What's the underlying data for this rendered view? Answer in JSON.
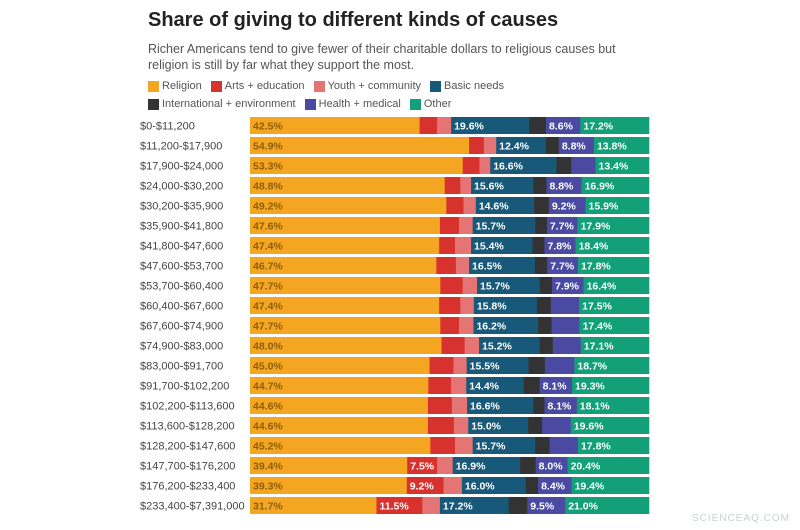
{
  "chart_data": {
    "type": "bar",
    "orientation": "horizontal",
    "stacked": true,
    "title": "Share of giving to different kinds of causes",
    "subtitle": "Richer Americans tend to give fewer of their charitable dollars to religious causes but religion is still by far what they support the most.",
    "legend_position": "top",
    "grid": false,
    "xlim": [
      0,
      100
    ],
    "series": [
      {
        "name": "Religion",
        "color": "#f4a623"
      },
      {
        "name": "Arts + education",
        "color": "#d8322e"
      },
      {
        "name": "Youth + community",
        "color": "#e57575"
      },
      {
        "name": "Basic needs",
        "color": "#18597a"
      },
      {
        "name": "International + environment",
        "color": "#333333"
      },
      {
        "name": "Health + medical",
        "color": "#4a4aa3"
      },
      {
        "name": "Other",
        "color": "#13a078"
      }
    ],
    "rows": [
      {
        "category": "$0-$11,200",
        "values": [
          42.5,
          4.4,
          3.5,
          19.6,
          4.2,
          8.6,
          17.2
        ],
        "labels": [
          "42.5%",
          "",
          "",
          "19.6%",
          "",
          "8.6%",
          "17.2%"
        ]
      },
      {
        "category": "$11,200-$17,900",
        "values": [
          54.9,
          3.7,
          3.1,
          12.4,
          3.3,
          8.8,
          13.8
        ],
        "labels": [
          "54.9%",
          "",
          "",
          "12.4%",
          "",
          "8.8%",
          "13.8%"
        ]
      },
      {
        "category": "$17,900-$24,000",
        "values": [
          53.3,
          4.2,
          2.7,
          16.6,
          3.7,
          6.1,
          13.4
        ],
        "labels": [
          "53.3%",
          "",
          "",
          "16.6%",
          "",
          "",
          "13.4%"
        ]
      },
      {
        "category": "$24,000-$30,200",
        "values": [
          48.8,
          3.9,
          2.7,
          15.6,
          3.3,
          8.8,
          16.9
        ],
        "labels": [
          "48.8%",
          "",
          "",
          "15.6%",
          "",
          "8.8%",
          "16.9%"
        ]
      },
      {
        "category": "$30,200-$35,900",
        "values": [
          49.2,
          4.3,
          3.1,
          14.6,
          3.7,
          9.2,
          15.9
        ],
        "labels": [
          "49.2%",
          "",
          "",
          "14.6%",
          "",
          "9.2%",
          "15.9%"
        ]
      },
      {
        "category": "$35,900-$41,800",
        "values": [
          47.6,
          4.8,
          3.4,
          15.7,
          2.9,
          7.7,
          17.9
        ],
        "labels": [
          "47.6%",
          "",
          "",
          "15.7%",
          "",
          "7.7%",
          "17.9%"
        ]
      },
      {
        "category": "$41,800-$47,600",
        "values": [
          47.4,
          4.0,
          4.0,
          15.4,
          3.0,
          7.8,
          18.4
        ],
        "labels": [
          "47.4%",
          "",
          "",
          "15.4%",
          "",
          "7.8%",
          "18.4%"
        ]
      },
      {
        "category": "$47,600-$53,700",
        "values": [
          46.7,
          4.9,
          3.3,
          16.5,
          3.1,
          7.7,
          17.8
        ],
        "labels": [
          "46.7%",
          "",
          "",
          "16.5%",
          "",
          "7.7%",
          "17.8%"
        ]
      },
      {
        "category": "$53,700-$60,400",
        "values": [
          47.7,
          5.6,
          3.6,
          15.7,
          3.1,
          7.9,
          16.4
        ],
        "labels": [
          "47.7%",
          "",
          "",
          "15.7%",
          "",
          "7.9%",
          "16.4%"
        ]
      },
      {
        "category": "$60,400-$67,600",
        "values": [
          47.4,
          5.3,
          3.4,
          15.8,
          3.5,
          7.1,
          17.5
        ],
        "labels": [
          "47.4%",
          "",
          "",
          "15.8%",
          "",
          "",
          "17.5%"
        ]
      },
      {
        "category": "$67,600-$74,900",
        "values": [
          47.7,
          4.7,
          3.6,
          16.2,
          3.4,
          7.0,
          17.4
        ],
        "labels": [
          "47.7%",
          "",
          "",
          "16.2%",
          "",
          "",
          "17.4%"
        ]
      },
      {
        "category": "$74,900-$83,000",
        "values": [
          48.0,
          5.8,
          3.6,
          15.2,
          3.3,
          7.0,
          17.1
        ],
        "labels": [
          "48.0%",
          "",
          "",
          "15.2%",
          "",
          "",
          "17.1%"
        ]
      },
      {
        "category": "$83,000-$91,700",
        "values": [
          45.0,
          6.0,
          3.3,
          15.5,
          4.1,
          7.4,
          18.7
        ],
        "labels": [
          "45.0%",
          "",
          "",
          "15.5%",
          "",
          "",
          "18.7%"
        ]
      },
      {
        "category": "$91,700-$102,200",
        "values": [
          44.7,
          5.7,
          3.8,
          14.4,
          4.0,
          8.1,
          19.3
        ],
        "labels": [
          "44.7%",
          "",
          "",
          "14.4%",
          "",
          "8.1%",
          "19.3%"
        ]
      },
      {
        "category": "$102,200-$113,600",
        "values": [
          44.6,
          6.0,
          3.8,
          16.6,
          2.8,
          8.1,
          18.1
        ],
        "labels": [
          "44.6%",
          "",
          "",
          "16.6%",
          "",
          "8.1%",
          "18.1%"
        ]
      },
      {
        "category": "$113,600-$128,200",
        "values": [
          44.6,
          6.5,
          3.6,
          15.0,
          3.5,
          7.2,
          19.6
        ],
        "labels": [
          "44.6%",
          "",
          "",
          "15.0%",
          "",
          "",
          "19.6%"
        ]
      },
      {
        "category": "$128,200-$147,600",
        "values": [
          45.2,
          6.2,
          4.4,
          15.7,
          3.6,
          7.1,
          17.8
        ],
        "labels": [
          "45.2%",
          "",
          "",
          "15.7%",
          "",
          "",
          "17.8%"
        ]
      },
      {
        "category": "$147,700-$176,200",
        "values": [
          39.4,
          7.5,
          3.9,
          16.9,
          3.9,
          8.0,
          20.4
        ],
        "labels": [
          "39.4%",
          "7.5%",
          "",
          "16.9%",
          "",
          "8.0%",
          "20.4%"
        ]
      },
      {
        "category": "$176,200-$233,400",
        "values": [
          39.3,
          9.2,
          4.6,
          16.0,
          3.1,
          8.4,
          19.4
        ],
        "labels": [
          "39.3%",
          "9.2%",
          "",
          "16.0%",
          "",
          "8.4%",
          "19.4%"
        ]
      },
      {
        "category": "$233,400-$7,391,000",
        "values": [
          31.7,
          11.5,
          4.4,
          17.2,
          4.7,
          9.5,
          21.0
        ],
        "labels": [
          "31.7%",
          "11.5%",
          "",
          "17.2%",
          "",
          "9.5%",
          "21.0%"
        ]
      }
    ]
  },
  "watermark": "SCIENCEAQ.COM"
}
